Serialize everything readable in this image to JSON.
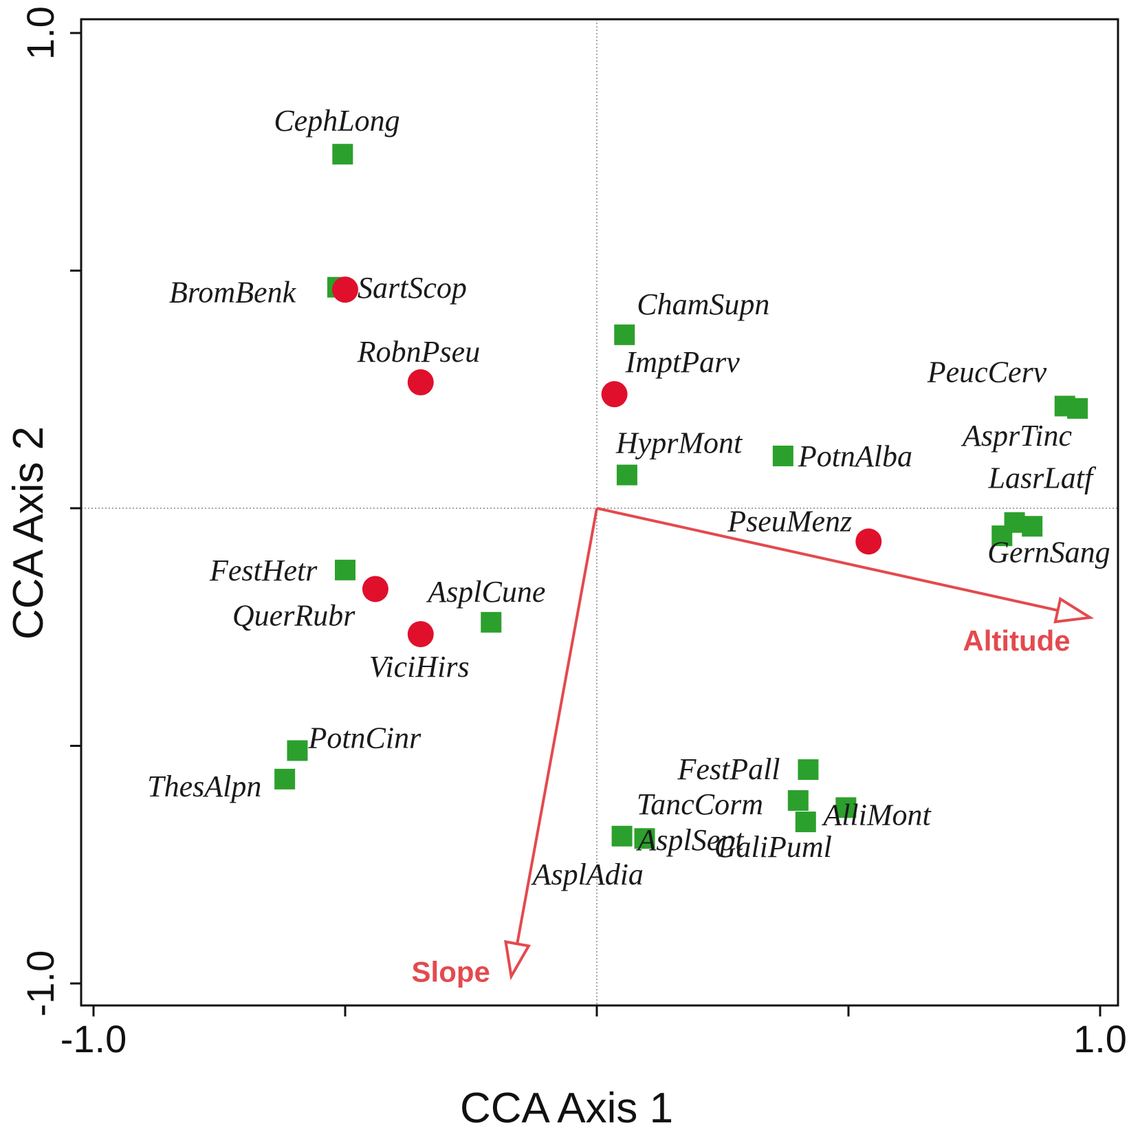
{
  "chart_data": {
    "type": "scatter",
    "title": "",
    "xlabel": "CCA Axis 1",
    "ylabel": "CCA Axis 2",
    "xlim": [
      -1.0,
      1.0
    ],
    "ylim": [
      -1.0,
      1.0
    ],
    "xticks": [
      -1.0,
      -0.5,
      0.0,
      0.5,
      1.0
    ],
    "yticks": [
      -1.0,
      -0.5,
      0.0,
      0.5,
      1.0
    ],
    "xtick_labels": [
      "-1.0",
      "",
      "",
      "",
      "1.0"
    ],
    "ytick_labels": [
      "-1.0",
      "",
      "",
      "",
      "1.0"
    ],
    "zero_lines": true,
    "colors": {
      "square": "#2ca02c",
      "circle": "#e0102c",
      "arrow": "#e34a4f",
      "zero_line": "#888888"
    },
    "series": [
      {
        "name": "Green squares",
        "marker": "square",
        "points": [
          {
            "label": "CephLong",
            "x": -0.505,
            "y": 0.745
          },
          {
            "label": "BromBenk",
            "x": -0.515,
            "y": 0.465
          },
          {
            "label": "ChamSupn",
            "x": 0.055,
            "y": 0.365
          },
          {
            "label": "PeucCerv",
            "x": 0.93,
            "y": 0.215
          },
          {
            "label": "AsprTinc",
            "x": 0.955,
            "y": 0.21
          },
          {
            "label": "PotnAlba",
            "x": 0.37,
            "y": 0.11
          },
          {
            "label": "HyprMont",
            "x": 0.06,
            "y": 0.07
          },
          {
            "label": "LasrLatf",
            "x": 0.83,
            "y": -0.03
          },
          {
            "label": "GernSang",
            "x": 0.865,
            "y": -0.038
          },
          {
            "label": "",
            "x": 0.805,
            "y": -0.058
          },
          {
            "label": "FestHetr",
            "x": -0.5,
            "y": -0.13
          },
          {
            "label": "AsplCune",
            "x": -0.21,
            "y": -0.24
          },
          {
            "label": "PotnCinr",
            "x": -0.595,
            "y": -0.51
          },
          {
            "label": "ThesAlpn",
            "x": -0.62,
            "y": -0.57
          },
          {
            "label": "FestPall",
            "x": 0.42,
            "y": -0.55
          },
          {
            "label": "AlliMont",
            "x": 0.495,
            "y": -0.63
          },
          {
            "label": "TancCorm",
            "x": 0.4,
            "y": -0.615
          },
          {
            "label": "GaliPuml",
            "x": 0.415,
            "y": -0.66
          },
          {
            "label": "AsplAdia",
            "x": 0.05,
            "y": -0.69
          },
          {
            "label": "AsplSept",
            "x": 0.095,
            "y": -0.695
          }
        ]
      },
      {
        "name": "Red circles",
        "marker": "circle",
        "points": [
          {
            "label": "SartScop",
            "x": -0.5,
            "y": 0.46
          },
          {
            "label": "RobnPseu",
            "x": -0.35,
            "y": 0.265
          },
          {
            "label": "ImptParv",
            "x": 0.035,
            "y": 0.24
          },
          {
            "label": "PseuMenz",
            "x": 0.54,
            "y": -0.07
          },
          {
            "label": "QuerRubr",
            "x": -0.44,
            "y": -0.17
          },
          {
            "label": "ViciHirs",
            "x": -0.35,
            "y": -0.265
          }
        ]
      }
    ],
    "vectors": [
      {
        "label": "Altitude",
        "x": 0.98,
        "y": -0.23
      },
      {
        "label": "Slope",
        "x": -0.17,
        "y": -0.985
      }
    ]
  }
}
